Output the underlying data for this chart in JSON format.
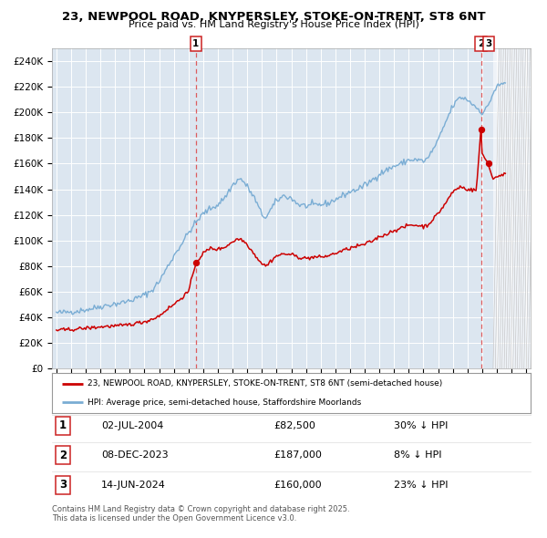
{
  "title_line1": "23, NEWPOOL ROAD, KNYPERSLEY, STOKE-ON-TRENT, ST8 6NT",
  "title_line2": "Price paid vs. HM Land Registry's House Price Index (HPI)",
  "ylim": [
    0,
    250000
  ],
  "yticks": [
    0,
    20000,
    40000,
    60000,
    80000,
    100000,
    120000,
    140000,
    160000,
    180000,
    200000,
    220000,
    240000
  ],
  "ytick_labels": [
    "£0",
    "£20K",
    "£40K",
    "£60K",
    "£80K",
    "£100K",
    "£120K",
    "£140K",
    "£160K",
    "£180K",
    "£200K",
    "£220K",
    "£240K"
  ],
  "xlim_start": 1994.7,
  "xlim_end": 2027.3,
  "xtick_years": [
    1995,
    1996,
    1997,
    1998,
    1999,
    2000,
    2001,
    2002,
    2003,
    2004,
    2005,
    2006,
    2007,
    2008,
    2009,
    2010,
    2011,
    2012,
    2013,
    2014,
    2015,
    2016,
    2017,
    2018,
    2019,
    2020,
    2021,
    2022,
    2023,
    2024,
    2025,
    2026,
    2027
  ],
  "hpi_color": "#7aadd4",
  "price_color": "#cc0000",
  "bg_color": "#dce6f0",
  "grid_color": "#ffffff",
  "sale1_x": 2004.5,
  "sale1_y": 82500,
  "sale2_x": 2023.92,
  "sale2_y": 187000,
  "sale3_x": 2024.45,
  "sale3_y": 160000,
  "hatch_start": 2024.75,
  "legend_property": "23, NEWPOOL ROAD, KNYPERSLEY, STOKE-ON-TRENT, ST8 6NT (semi-detached house)",
  "legend_hpi": "HPI: Average price, semi-detached house, Staffordshire Moorlands",
  "table_rows": [
    {
      "num": "1",
      "date": "02-JUL-2004",
      "price": "£82,500",
      "vs_hpi": "30% ↓ HPI"
    },
    {
      "num": "2",
      "date": "08-DEC-2023",
      "price": "£187,000",
      "vs_hpi": "8% ↓ HPI"
    },
    {
      "num": "3",
      "date": "14-JUN-2024",
      "price": "£160,000",
      "vs_hpi": "23% ↓ HPI"
    }
  ],
  "footnote": "Contains HM Land Registry data © Crown copyright and database right 2025.\nThis data is licensed under the Open Government Licence v3.0."
}
